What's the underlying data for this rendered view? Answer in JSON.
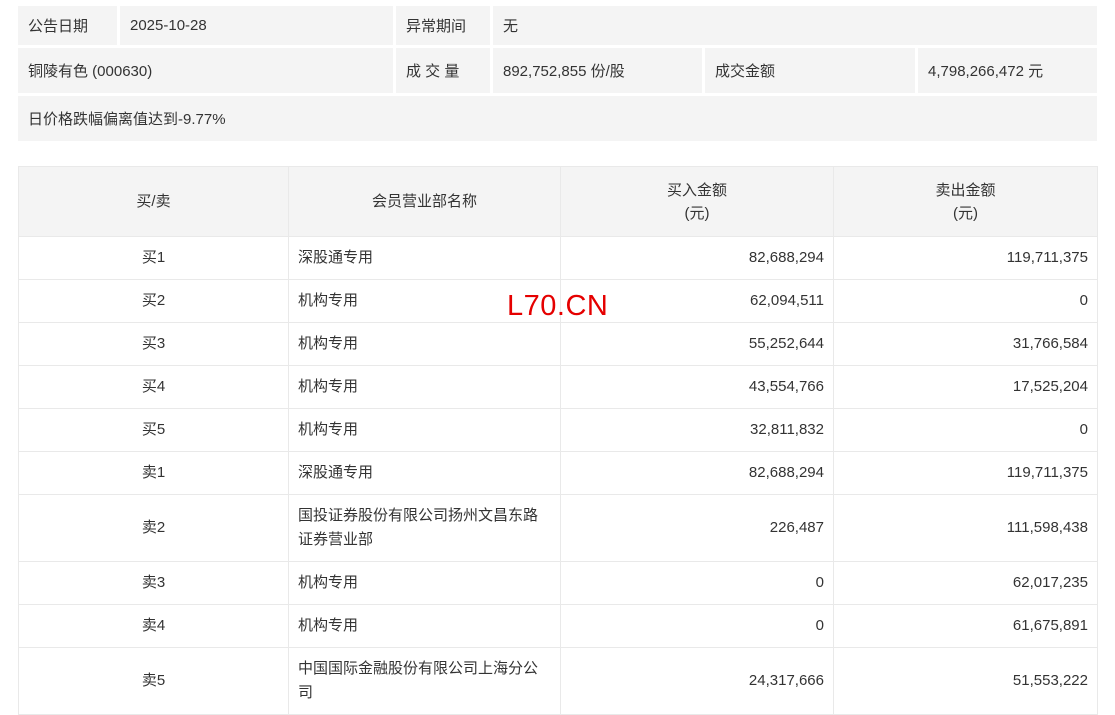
{
  "summary": {
    "announce_date_label": "公告日期",
    "announce_date": "2025-10-28",
    "abnormal_period_label": "异常期间",
    "abnormal_period": "无",
    "stock_title": "铜陵有色 (000630)",
    "volume_label": "成 交 量",
    "volume_value": "892,752,855 份/股",
    "turnover_label": "成交金额",
    "turnover_value": "4,798,266,472 元",
    "reason_text": "日价格跌幅偏离值达到-9.77%"
  },
  "watermark": {
    "text": "L70.CN",
    "color": "#e50000"
  },
  "table": {
    "headers": [
      {
        "line1": "买/卖",
        "line2": ""
      },
      {
        "line1": "会员营业部名称",
        "line2": ""
      },
      {
        "line1": "买入金额",
        "line2": "(元)"
      },
      {
        "line1": "卖出金额",
        "line2": "(元)"
      }
    ],
    "rows": [
      {
        "rank": "买1",
        "name": "深股通专用",
        "buy": "82,688,294",
        "sell": "119,711,375"
      },
      {
        "rank": "买2",
        "name": "机构专用",
        "buy": "62,094,511",
        "sell": "0"
      },
      {
        "rank": "买3",
        "name": "机构专用",
        "buy": "55,252,644",
        "sell": "31,766,584"
      },
      {
        "rank": "买4",
        "name": "机构专用",
        "buy": "43,554,766",
        "sell": "17,525,204"
      },
      {
        "rank": "买5",
        "name": "机构专用",
        "buy": "32,811,832",
        "sell": "0"
      },
      {
        "rank": "卖1",
        "name": "深股通专用",
        "buy": "82,688,294",
        "sell": "119,711,375"
      },
      {
        "rank": "卖2",
        "name": "国投证券股份有限公司扬州文昌东路证券营业部",
        "buy": "226,487",
        "sell": "111,598,438"
      },
      {
        "rank": "卖3",
        "name": "机构专用",
        "buy": "0",
        "sell": "62,017,235"
      },
      {
        "rank": "卖4",
        "name": "机构专用",
        "buy": "0",
        "sell": "61,675,891"
      },
      {
        "rank": "卖5",
        "name": "中国国际金融股份有限公司上海分公司",
        "buy": "24,317,666",
        "sell": "51,553,222"
      }
    ]
  },
  "colors": {
    "panel_bg": "#f4f4f4",
    "border": "#e9e9e9",
    "text": "#333333",
    "watermark_red": "#e50000"
  }
}
